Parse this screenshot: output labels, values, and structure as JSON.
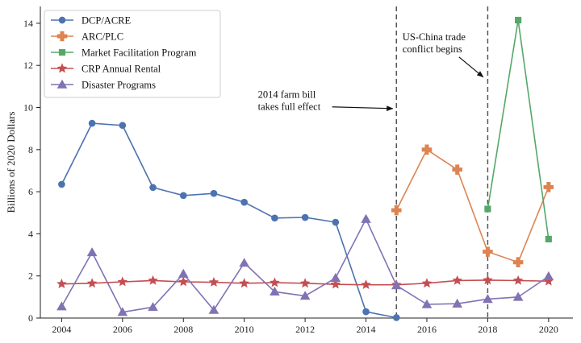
{
  "chart_data": {
    "type": "line",
    "title": "",
    "xlabel": "",
    "ylabel": "Billions of 2020 Dollars",
    "xlim": [
      2003.3,
      2020.8
    ],
    "ylim": [
      0,
      14.8
    ],
    "xticks": [
      2004,
      2006,
      2008,
      2010,
      2012,
      2014,
      2016,
      2018,
      2020
    ],
    "yticks": [
      0,
      2,
      4,
      6,
      8,
      10,
      12,
      14
    ],
    "grid": false,
    "legend_position": "top-left",
    "series": [
      {
        "name": "DCP/ACRE",
        "color": "#4c72b0",
        "marker": "circle",
        "x": [
          2004,
          2005,
          2006,
          2007,
          2008,
          2009,
          2010,
          2011,
          2012,
          2013,
          2014,
          2015
        ],
        "values": [
          6.35,
          9.25,
          9.15,
          6.2,
          5.82,
          5.92,
          5.5,
          4.75,
          4.78,
          4.55,
          0.3,
          0.02
        ]
      },
      {
        "name": "ARC/PLC",
        "color": "#dd8452",
        "marker": "plus",
        "x": [
          2015,
          2016,
          2017,
          2018,
          2019,
          2020
        ],
        "values": [
          5.12,
          8.0,
          7.05,
          3.15,
          2.65,
          6.22
        ]
      },
      {
        "name": "Market Facilitation Program",
        "color": "#55a868",
        "marker": "square",
        "x": [
          2018,
          2019,
          2020
        ],
        "values": [
          5.18,
          14.15,
          3.75
        ]
      },
      {
        "name": "CRP Annual Rental",
        "color": "#c44e52",
        "marker": "star",
        "x": [
          2004,
          2005,
          2006,
          2007,
          2008,
          2009,
          2010,
          2011,
          2012,
          2013,
          2014,
          2015,
          2016,
          2017,
          2018,
          2019,
          2020
        ],
        "values": [
          1.62,
          1.65,
          1.72,
          1.78,
          1.72,
          1.7,
          1.65,
          1.68,
          1.65,
          1.6,
          1.58,
          1.58,
          1.65,
          1.78,
          1.8,
          1.78,
          1.75
        ]
      },
      {
        "name": "Disaster Programs",
        "color": "#8172b3",
        "marker": "triangle",
        "x": [
          2004,
          2005,
          2006,
          2007,
          2008,
          2009,
          2010,
          2011,
          2012,
          2013,
          2014,
          2015,
          2016,
          2017,
          2018,
          2019,
          2020
        ],
        "values": [
          0.55,
          3.12,
          0.28,
          0.52,
          2.1,
          0.38,
          2.62,
          1.25,
          1.05,
          1.9,
          4.7,
          1.55,
          0.65,
          0.68,
          0.9,
          1.0,
          1.98
        ]
      }
    ],
    "vlines": [
      {
        "x": 2015,
        "color": "#555555",
        "style": "dashed"
      },
      {
        "x": 2018,
        "color": "#555555",
        "style": "dashed"
      }
    ],
    "annotations": [
      {
        "lines": [
          "2014 farm bill",
          "takes full effect"
        ],
        "text_x": 2010.45,
        "text_y": 10.45,
        "arrow_to_x": 2014.88,
        "arrow_to_y": 9.95
      },
      {
        "lines": [
          "US-China trade",
          "conflict begins"
        ],
        "text_x": 2015.2,
        "text_y": 13.2,
        "arrow_to_x": 2017.85,
        "arrow_to_y": 11.45
      }
    ]
  }
}
